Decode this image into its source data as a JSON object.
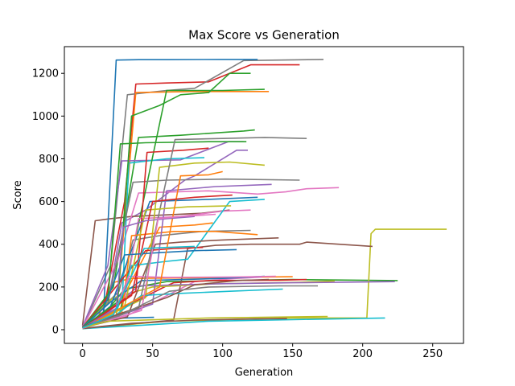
{
  "chart_data": {
    "type": "line",
    "title": "Max Score vs Generation",
    "xlabel": "Generation",
    "ylabel": "Score",
    "xlim": [
      -13,
      272
    ],
    "ylim": [
      -64,
      1325
    ],
    "xticks": [
      0,
      50,
      100,
      150,
      200,
      250
    ],
    "yticks": [
      0,
      200,
      400,
      600,
      800,
      1000,
      1200
    ],
    "grid": false,
    "legend": "none",
    "palette": [
      "#1f77b4",
      "#ff7f0e",
      "#2ca02c",
      "#d62728",
      "#9467bd",
      "#8c564b",
      "#e377c2",
      "#7f7f7f",
      "#bcbd22",
      "#17becf"
    ],
    "series": [
      {
        "points": [
          [
            0,
            8
          ],
          [
            8,
            22
          ],
          [
            18,
            48
          ],
          [
            30,
            55
          ],
          [
            51,
            58
          ]
        ]
      },
      {
        "points": [
          [
            0,
            10
          ],
          [
            10,
            40
          ],
          [
            21,
            220
          ],
          [
            35,
            240
          ],
          [
            110,
            245
          ],
          [
            150,
            248
          ]
        ]
      },
      {
        "points": [
          [
            0,
            12
          ],
          [
            12,
            45
          ],
          [
            30,
            190
          ],
          [
            60,
            225
          ],
          [
            150,
            235
          ],
          [
            225,
            230
          ]
        ]
      },
      {
        "points": [
          [
            0,
            15
          ],
          [
            14,
            55
          ],
          [
            24,
            400
          ],
          [
            30,
            600
          ],
          [
            38,
            1150
          ],
          [
            60,
            1155
          ],
          [
            90,
            1160
          ],
          [
            120,
            1240
          ],
          [
            155,
            1240
          ]
        ]
      },
      {
        "points": [
          [
            0,
            18
          ],
          [
            18,
            120
          ],
          [
            28,
            500
          ],
          [
            45,
            560
          ],
          [
            73,
            700
          ],
          [
            80,
            720
          ],
          [
            110,
            840
          ],
          [
            118,
            840
          ]
        ]
      },
      {
        "points": [
          [
            0,
            20
          ],
          [
            9,
            510
          ],
          [
            20,
            520
          ],
          [
            35,
            530
          ],
          [
            85,
            545
          ],
          [
            105,
            560
          ]
        ]
      },
      {
        "points": [
          [
            0,
            16
          ],
          [
            30,
            60
          ],
          [
            80,
            225
          ],
          [
            110,
            240
          ],
          [
            128,
            246
          ]
        ]
      },
      {
        "points": [
          [
            0,
            10
          ],
          [
            20,
            300
          ],
          [
            32,
            1100
          ],
          [
            60,
            1120
          ],
          [
            80,
            1130
          ],
          [
            115,
            1260
          ],
          [
            172,
            1265
          ]
        ]
      },
      {
        "points": [
          [
            0,
            5
          ],
          [
            60,
            40
          ],
          [
            120,
            50
          ],
          [
            150,
            55
          ],
          [
            203,
            55
          ],
          [
            206,
            450
          ],
          [
            209,
            470
          ],
          [
            260,
            470
          ]
        ]
      },
      {
        "points": [
          [
            0,
            5
          ],
          [
            40,
            20
          ],
          [
            90,
            40
          ],
          [
            158,
            48
          ],
          [
            216,
            55
          ]
        ]
      },
      {
        "points": [
          [
            0,
            12
          ],
          [
            15,
            80
          ],
          [
            24,
            1262
          ],
          [
            40,
            1264
          ],
          [
            60,
            1264
          ],
          [
            100,
            1265
          ],
          [
            125,
            1265
          ]
        ]
      },
      {
        "points": [
          [
            0,
            14
          ],
          [
            24,
            60
          ],
          [
            38,
            1110
          ],
          [
            80,
            1115
          ],
          [
            133,
            1115
          ]
        ]
      },
      {
        "points": [
          [
            0,
            10
          ],
          [
            22,
            200
          ],
          [
            40,
            900
          ],
          [
            70,
            910
          ],
          [
            115,
            930
          ],
          [
            123,
            935
          ]
        ]
      },
      {
        "points": [
          [
            0,
            8
          ],
          [
            60,
            205
          ],
          [
            65,
            220
          ],
          [
            90,
            230
          ],
          [
            140,
            232
          ],
          [
            160,
            235
          ]
        ]
      },
      {
        "points": [
          [
            0,
            14
          ],
          [
            18,
            300
          ],
          [
            28,
            790
          ],
          [
            70,
            795
          ],
          [
            104,
            880
          ],
          [
            115,
            880
          ]
        ]
      },
      {
        "points": [
          [
            0,
            6
          ],
          [
            65,
            45
          ],
          [
            75,
            380
          ],
          [
            95,
            395
          ],
          [
            120,
            400
          ],
          [
            155,
            400
          ],
          [
            160,
            410
          ],
          [
            207,
            390
          ]
        ]
      },
      {
        "points": [
          [
            0,
            10
          ],
          [
            25,
            320
          ],
          [
            40,
            640
          ],
          [
            90,
            650
          ],
          [
            125,
            635
          ],
          [
            145,
            645
          ],
          [
            160,
            660
          ],
          [
            183,
            665
          ]
        ]
      },
      {
        "points": [
          [
            0,
            12
          ],
          [
            26,
            180
          ],
          [
            36,
            420
          ],
          [
            55,
            440
          ],
          [
            85,
            460
          ],
          [
            120,
            465
          ]
        ]
      },
      {
        "points": [
          [
            0,
            9
          ],
          [
            22,
            150
          ],
          [
            50,
            200
          ],
          [
            95,
            215
          ],
          [
            155,
            222
          ],
          [
            180,
            228
          ]
        ]
      },
      {
        "points": [
          [
            0,
            6
          ],
          [
            28,
            100
          ],
          [
            33,
            780
          ],
          [
            60,
            800
          ],
          [
            87,
            805
          ]
        ]
      },
      {
        "points": [
          [
            0,
            7
          ],
          [
            20,
            110
          ],
          [
            48,
            600
          ],
          [
            90,
            610
          ],
          [
            125,
            620
          ]
        ]
      },
      {
        "points": [
          [
            0,
            10
          ],
          [
            24,
            90
          ],
          [
            55,
            480
          ],
          [
            80,
            490
          ],
          [
            93,
            500
          ]
        ]
      },
      {
        "points": [
          [
            0,
            8
          ],
          [
            26,
            60
          ],
          [
            60,
            1120
          ],
          [
            100,
            1120
          ],
          [
            130,
            1125
          ]
        ]
      },
      {
        "points": [
          [
            0,
            12
          ],
          [
            30,
            250
          ],
          [
            45,
            370
          ],
          [
            65,
            380
          ],
          [
            86,
            385
          ]
        ]
      },
      {
        "points": [
          [
            0,
            10
          ],
          [
            16,
            70
          ],
          [
            40,
            205
          ],
          [
            95,
            215
          ],
          [
            150,
            220
          ],
          [
            223,
            225
          ]
        ]
      },
      {
        "points": [
          [
            0,
            6
          ],
          [
            35,
            30
          ],
          [
            80,
            45
          ],
          [
            120,
            50
          ],
          [
            146,
            52
          ]
        ]
      },
      {
        "points": [
          [
            0,
            9
          ],
          [
            30,
            140
          ],
          [
            40,
            520
          ],
          [
            70,
            530
          ],
          [
            100,
            555
          ],
          [
            120,
            560
          ]
        ]
      },
      {
        "points": [
          [
            0,
            11
          ],
          [
            18,
            120
          ],
          [
            36,
            690
          ],
          [
            60,
            700
          ],
          [
            102,
            705
          ],
          [
            155,
            700
          ]
        ]
      },
      {
        "points": [
          [
            0,
            8
          ],
          [
            45,
            150
          ],
          [
            55,
            760
          ],
          [
            80,
            780
          ],
          [
            105,
            785
          ],
          [
            130,
            770
          ]
        ]
      },
      {
        "points": [
          [
            0,
            7
          ],
          [
            25,
            100
          ],
          [
            35,
            300
          ],
          [
            60,
            320
          ],
          [
            75,
            330
          ],
          [
            105,
            600
          ],
          [
            130,
            610
          ]
        ]
      },
      {
        "points": [
          [
            0,
            10
          ],
          [
            20,
            130
          ],
          [
            42,
            230
          ],
          [
            100,
            240
          ],
          [
            130,
            250
          ]
        ]
      },
      {
        "points": [
          [
            0,
            8
          ],
          [
            28,
            80
          ],
          [
            35,
            440
          ],
          [
            65,
            460
          ],
          [
            95,
            460
          ],
          [
            125,
            445
          ]
        ]
      },
      {
        "points": [
          [
            0,
            12
          ],
          [
            18,
            140
          ],
          [
            27,
            870
          ],
          [
            45,
            875
          ],
          [
            90,
            880
          ],
          [
            117,
            880
          ]
        ]
      },
      {
        "points": [
          [
            0,
            9
          ],
          [
            38,
            180
          ],
          [
            46,
            830
          ],
          [
            72,
            840
          ],
          [
            90,
            850
          ]
        ]
      },
      {
        "points": [
          [
            0,
            6
          ],
          [
            50,
            120
          ],
          [
            60,
            650
          ],
          [
            95,
            670
          ],
          [
            135,
            680
          ]
        ]
      },
      {
        "points": [
          [
            0,
            10
          ],
          [
            32,
            60
          ],
          [
            52,
            400
          ],
          [
            70,
            410
          ],
          [
            100,
            420
          ],
          [
            140,
            430
          ]
        ]
      },
      {
        "points": [
          [
            0,
            7
          ],
          [
            22,
            70
          ],
          [
            33,
            250
          ],
          [
            60,
            245
          ],
          [
            110,
            247
          ],
          [
            138,
            250
          ]
        ]
      },
      {
        "points": [
          [
            0,
            11
          ],
          [
            40,
            100
          ],
          [
            66,
            890
          ],
          [
            100,
            895
          ],
          [
            130,
            900
          ],
          [
            160,
            895
          ]
        ]
      },
      {
        "points": [
          [
            0,
            8
          ],
          [
            30,
            110
          ],
          [
            45,
            560
          ],
          [
            75,
            575
          ],
          [
            106,
            580
          ]
        ]
      },
      {
        "points": [
          [
            0,
            9
          ],
          [
            20,
            50
          ],
          [
            42,
            160
          ],
          [
            70,
            170
          ],
          [
            105,
            180
          ],
          [
            143,
            190
          ]
        ]
      },
      {
        "points": [
          [
            0,
            12
          ],
          [
            15,
            100
          ],
          [
            30,
            350
          ],
          [
            52,
            360
          ],
          [
            80,
            370
          ],
          [
            110,
            375
          ]
        ]
      },
      {
        "points": [
          [
            0,
            6
          ],
          [
            55,
            200
          ],
          [
            70,
            720
          ],
          [
            90,
            725
          ],
          [
            100,
            740
          ]
        ]
      },
      {
        "points": [
          [
            0,
            10
          ],
          [
            25,
            130
          ],
          [
            35,
            1000
          ],
          [
            55,
            1050
          ],
          [
            70,
            1100
          ],
          [
            90,
            1110
          ],
          [
            105,
            1200
          ],
          [
            120,
            1200
          ]
        ]
      },
      {
        "points": [
          [
            0,
            8
          ],
          [
            35,
            160
          ],
          [
            50,
            600
          ],
          [
            80,
            620
          ],
          [
            107,
            630
          ]
        ]
      },
      {
        "points": [
          [
            0,
            9
          ],
          [
            24,
            100
          ],
          [
            29,
            480
          ],
          [
            45,
            510
          ],
          [
            60,
            520
          ],
          [
            80,
            530
          ]
        ]
      },
      {
        "points": [
          [
            0,
            13
          ],
          [
            20,
            60
          ],
          [
            60,
            150
          ],
          [
            80,
            210
          ],
          [
            110,
            230
          ],
          [
            133,
            235
          ]
        ]
      },
      {
        "points": [
          [
            0,
            7
          ],
          [
            42,
            90
          ],
          [
            54,
            520
          ],
          [
            70,
            530
          ],
          [
            95,
            540
          ]
        ]
      },
      {
        "points": [
          [
            0,
            10
          ],
          [
            28,
            70
          ],
          [
            62,
            180
          ],
          [
            90,
            200
          ],
          [
            140,
            205
          ],
          [
            168,
            205
          ]
        ]
      },
      {
        "points": [
          [
            0,
            9
          ],
          [
            18,
            40
          ],
          [
            90,
            55
          ],
          [
            150,
            60
          ],
          [
            175,
            62
          ]
        ]
      },
      {
        "points": [
          [
            0,
            8
          ],
          [
            22,
            70
          ],
          [
            44,
            380
          ],
          [
            60,
            385
          ],
          [
            80,
            390
          ]
        ]
      }
    ]
  }
}
